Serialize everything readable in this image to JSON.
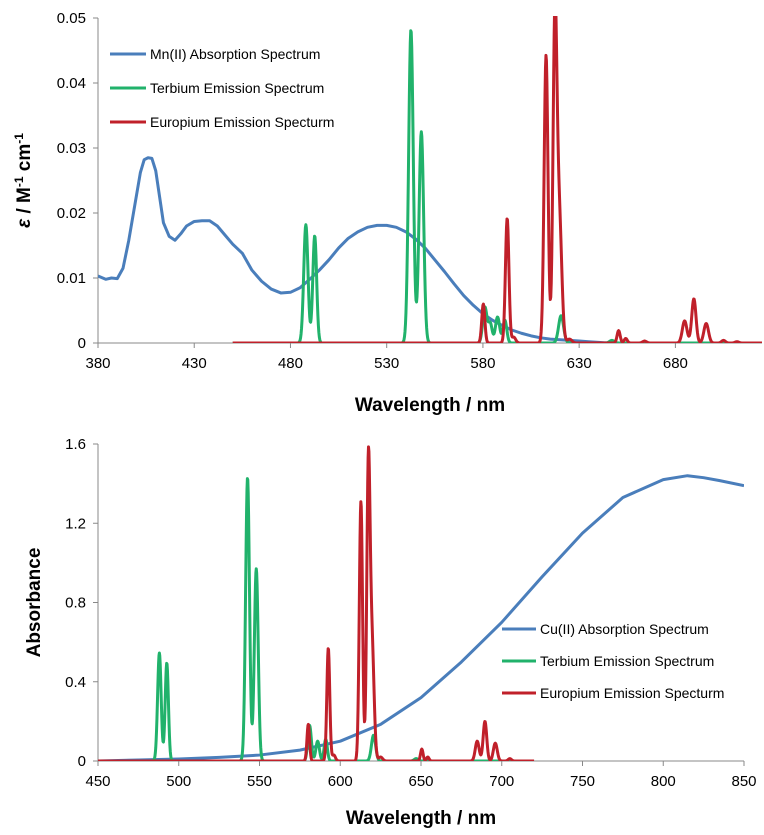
{
  "chart_data": [
    {
      "type": "line",
      "xlabel": "Wavelength / nm",
      "ylabel_parts": [
        "ε",
        " / M",
        "-1",
        " cm",
        "-1"
      ],
      "xlim": [
        380,
        725
      ],
      "ylim": [
        0,
        0.05
      ],
      "xticks": [
        380,
        430,
        480,
        530,
        580,
        630,
        680
      ],
      "yticks": [
        0,
        0.01,
        0.02,
        0.03,
        0.04,
        0.05
      ],
      "ytick_labels": [
        "0",
        "0.01",
        "0.02",
        "0.03",
        "0.04",
        "0.05"
      ],
      "grid": false,
      "legend_position": "top-left",
      "series": [
        {
          "name": "Mn(II) Absorption Spectrum",
          "color": "#4a7ebb",
          "x": [
            380,
            384,
            387,
            390,
            393,
            396,
            399,
            402,
            404,
            406,
            408,
            410,
            412,
            414,
            417,
            420,
            423,
            426,
            430,
            434,
            438,
            442,
            446,
            450,
            455,
            460,
            465,
            470,
            475,
            480,
            485,
            490,
            495,
            500,
            505,
            510,
            515,
            520,
            525,
            530,
            535,
            540,
            545,
            550,
            555,
            560,
            565,
            570,
            575,
            580,
            585,
            590,
            595,
            600,
            605,
            610,
            615,
            620,
            625,
            630,
            635,
            640,
            645
          ],
          "y": [
            0.0103,
            0.0098,
            0.01,
            0.0099,
            0.0115,
            0.0158,
            0.021,
            0.0262,
            0.0282,
            0.0285,
            0.0284,
            0.0265,
            0.0225,
            0.0185,
            0.0164,
            0.0158,
            0.0168,
            0.018,
            0.0187,
            0.0188,
            0.0188,
            0.018,
            0.0166,
            0.0152,
            0.0138,
            0.0112,
            0.0095,
            0.0083,
            0.0077,
            0.0078,
            0.0085,
            0.0098,
            0.0112,
            0.0128,
            0.0146,
            0.0161,
            0.0171,
            0.0178,
            0.0181,
            0.0181,
            0.0178,
            0.0171,
            0.016,
            0.0146,
            0.0128,
            0.011,
            0.0091,
            0.0073,
            0.0058,
            0.0045,
            0.0035,
            0.0027,
            0.002,
            0.0015,
            0.0011,
            0.0008,
            0.0006,
            0.0005,
            0.0004,
            0.0003,
            0.0002,
            0.0001,
            0.0
          ]
        },
        {
          "name": "Terbium Emission Spectrum",
          "color": "#21b26b",
          "baseline": 0,
          "x_start": 450,
          "x_end": 725,
          "peaks": [
            {
              "x": 488,
              "h": 0.0182,
              "w": 1.1
            },
            {
              "x": 492.6,
              "h": 0.0165,
              "w": 1.0
            },
            {
              "x": 542.6,
              "h": 0.0482,
              "w": 1.2
            },
            {
              "x": 548,
              "h": 0.0325,
              "w": 1.2
            },
            {
              "x": 581,
              "h": 0.0055,
              "w": 1.1
            },
            {
              "x": 583.8,
              "h": 0.003,
              "w": 1.0
            },
            {
              "x": 587.6,
              "h": 0.004,
              "w": 1.1
            },
            {
              "x": 591.4,
              "h": 0.0035,
              "w": 1.0
            },
            {
              "x": 620.6,
              "h": 0.0042,
              "w": 1.3
            },
            {
              "x": 647,
              "h": 0.0004,
              "w": 1.2
            }
          ]
        },
        {
          "name": "Europium Emission Specturm",
          "color": "#c0202a",
          "baseline": 0,
          "x_start": 450,
          "x_end": 725,
          "peaks": [
            {
              "x": 580.2,
              "h": 0.006,
              "w": 0.8
            },
            {
              "x": 592.6,
              "h": 0.0192,
              "w": 0.9
            },
            {
              "x": 596,
              "h": 0.0009,
              "w": 1.0
            },
            {
              "x": 612.8,
              "h": 0.0443,
              "w": 1.0
            },
            {
              "x": 617.4,
              "h": 0.0483,
              "w": 1.0
            },
            {
              "x": 619.6,
              "h": 0.02,
              "w": 1.3
            },
            {
              "x": 625,
              "h": 0.0006,
              "w": 1.2
            },
            {
              "x": 650.5,
              "h": 0.0019,
              "w": 0.8
            },
            {
              "x": 654.2,
              "h": 0.0007,
              "w": 0.8
            },
            {
              "x": 664,
              "h": 0.0003,
              "w": 1.0
            },
            {
              "x": 684.8,
              "h": 0.0034,
              "w": 1.2
            },
            {
              "x": 689.6,
              "h": 0.0068,
              "w": 1.1
            },
            {
              "x": 696,
              "h": 0.003,
              "w": 1.2
            },
            {
              "x": 705,
              "h": 0.0004,
              "w": 1.0
            },
            {
              "x": 712,
              "h": 0.0002,
              "w": 1.0
            }
          ]
        }
      ]
    },
    {
      "type": "line",
      "xlabel": "Wavelength / nm",
      "ylabel": "Absorbance",
      "xlim": [
        450,
        850
      ],
      "ylim": [
        0,
        1.6
      ],
      "xticks": [
        450,
        500,
        550,
        600,
        650,
        700,
        750,
        800,
        850
      ],
      "yticks": [
        0,
        0.4,
        0.8,
        1.2,
        1.6
      ],
      "ytick_labels": [
        "0",
        "0.4",
        "0.8",
        "1.2",
        "1.6"
      ],
      "grid": false,
      "legend_position": "right",
      "series": [
        {
          "name": "Cu(II) Absorption Spectrum",
          "color": "#4a7ebb",
          "x": [
            450,
            475,
            500,
            525,
            550,
            575,
            600,
            625,
            650,
            675,
            700,
            725,
            750,
            775,
            800,
            815,
            825,
            835,
            850
          ],
          "y": [
            0.0,
            0.005,
            0.01,
            0.018,
            0.03,
            0.055,
            0.1,
            0.185,
            0.32,
            0.5,
            0.7,
            0.93,
            1.15,
            1.33,
            1.42,
            1.44,
            1.43,
            1.415,
            1.39
          ]
        },
        {
          "name": "Terbium Emission Spectrum",
          "color": "#21b26b",
          "baseline": 0,
          "x_start": 450,
          "x_end": 720,
          "peaks": [
            {
              "x": 488,
              "h": 0.545,
              "w": 1.1
            },
            {
              "x": 492.6,
              "h": 0.495,
              "w": 1.0
            },
            {
              "x": 542.6,
              "h": 1.43,
              "w": 1.2
            },
            {
              "x": 548,
              "h": 0.97,
              "w": 1.2
            },
            {
              "x": 581,
              "h": 0.18,
              "w": 1.1
            },
            {
              "x": 586,
              "h": 0.1,
              "w": 1.1
            },
            {
              "x": 591,
              "h": 0.11,
              "w": 1.0
            },
            {
              "x": 620.6,
              "h": 0.13,
              "w": 1.3
            },
            {
              "x": 647,
              "h": 0.012,
              "w": 1.2
            }
          ]
        },
        {
          "name": "Europium Emission Specturm",
          "color": "#c0202a",
          "baseline": 0,
          "x_start": 450,
          "x_end": 720,
          "peaks": [
            {
              "x": 580.2,
              "h": 0.185,
              "w": 0.8
            },
            {
              "x": 592.6,
              "h": 0.57,
              "w": 0.9
            },
            {
              "x": 596,
              "h": 0.03,
              "w": 1.0
            },
            {
              "x": 612.8,
              "h": 1.31,
              "w": 1.0
            },
            {
              "x": 617.4,
              "h": 1.43,
              "w": 1.0
            },
            {
              "x": 619.6,
              "h": 0.6,
              "w": 1.3
            },
            {
              "x": 625,
              "h": 0.02,
              "w": 1.2
            },
            {
              "x": 650.5,
              "h": 0.06,
              "w": 0.8
            },
            {
              "x": 654.2,
              "h": 0.02,
              "w": 0.8
            },
            {
              "x": 684.8,
              "h": 0.1,
              "w": 1.2
            },
            {
              "x": 689.6,
              "h": 0.2,
              "w": 1.1
            },
            {
              "x": 696,
              "h": 0.09,
              "w": 1.2
            },
            {
              "x": 705,
              "h": 0.012,
              "w": 1.0
            }
          ]
        }
      ]
    }
  ]
}
